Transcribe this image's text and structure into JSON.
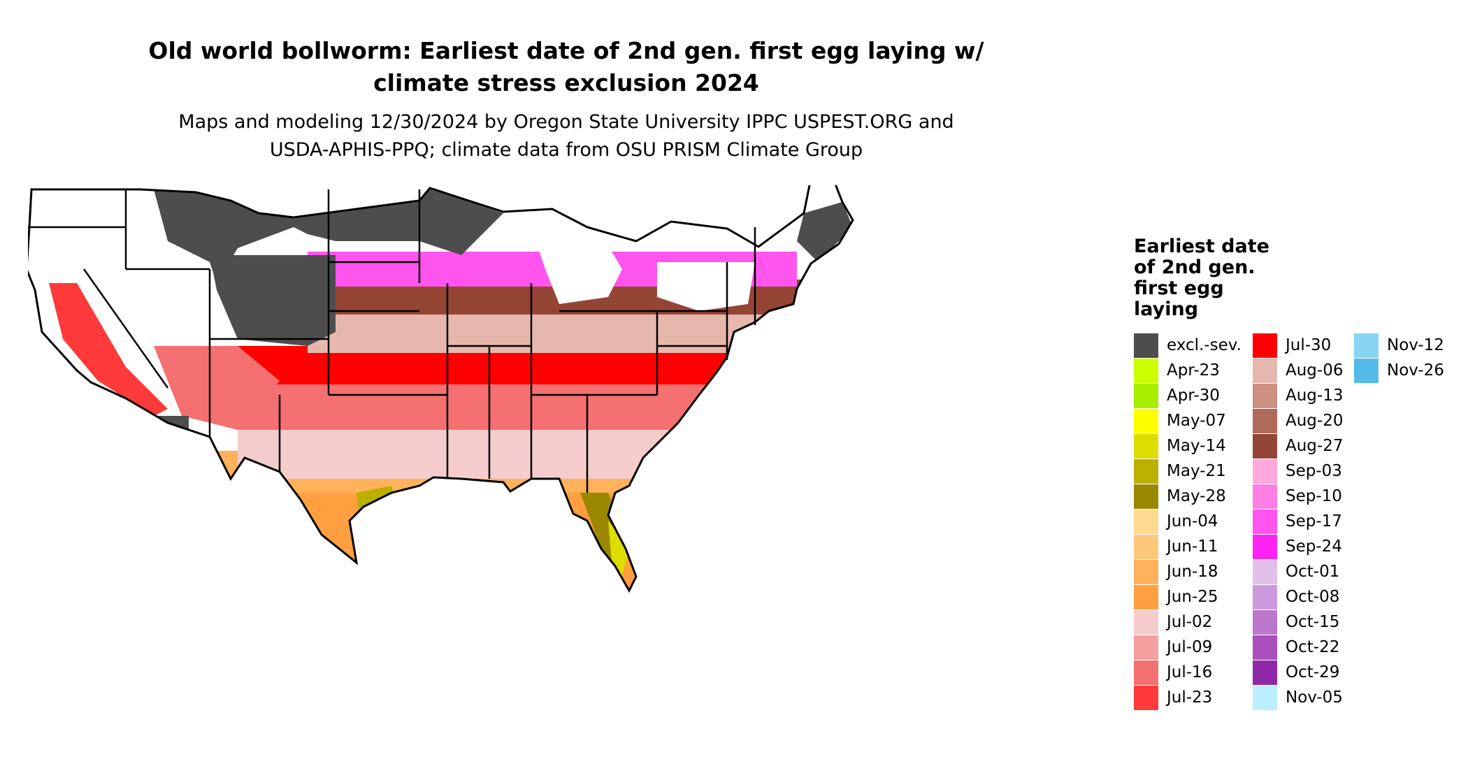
{
  "title": "Old world bollworm: Earliest date of 2nd gen. first egg laying w/\nclimate stress exclusion 2024",
  "title_line1": "Old world bollworm: Earliest date of 2nd gen. first egg laying w/",
  "title_line2": "climate stress exclusion 2024",
  "subtitle_line1": "Maps and modeling 12/30/2024 by Oregon State University IPPC USPEST.ORG and",
  "subtitle_line2": "USDA-APHIS-PPQ; climate data from OSU PRISM Climate Group",
  "legend": {
    "title": "Earliest date of 2nd gen. first egg laying",
    "items": [
      {
        "label": "excl.-sev.",
        "color": "#4d4d4d"
      },
      {
        "label": "Apr-23",
        "color": "#ccff00"
      },
      {
        "label": "Apr-30",
        "color": "#a8ee00"
      },
      {
        "label": "May-07",
        "color": "#ffff00"
      },
      {
        "label": "May-14",
        "color": "#dddd00"
      },
      {
        "label": "May-21",
        "color": "#bbb000"
      },
      {
        "label": "May-28",
        "color": "#9a8800"
      },
      {
        "label": "Jun-04",
        "color": "#ffd98f"
      },
      {
        "label": "Jun-11",
        "color": "#ffc77a"
      },
      {
        "label": "Jun-18",
        "color": "#ffb25a"
      },
      {
        "label": "Jun-25",
        "color": "#ff9f40"
      },
      {
        "label": "Jul-02",
        "color": "#f5cccc"
      },
      {
        "label": "Jul-09",
        "color": "#f5a0a0"
      },
      {
        "label": "Jul-16",
        "color": "#f57070"
      },
      {
        "label": "Jul-23",
        "color": "#ff3a3a"
      },
      {
        "label": "Jul-30",
        "color": "#ff0000"
      },
      {
        "label": "Aug-06",
        "color": "#e6b8ad"
      },
      {
        "label": "Aug-13",
        "color": "#cc8f80"
      },
      {
        "label": "Aug-20",
        "color": "#b06a5a"
      },
      {
        "label": "Aug-27",
        "color": "#954534"
      },
      {
        "label": "Sep-03",
        "color": "#ffa8dc"
      },
      {
        "label": "Sep-10",
        "color": "#ff7ee3"
      },
      {
        "label": "Sep-17",
        "color": "#ff55ee"
      },
      {
        "label": "Sep-24",
        "color": "#ff22f5"
      },
      {
        "label": "Oct-01",
        "color": "#e3c0ea"
      },
      {
        "label": "Oct-08",
        "color": "#cc99dd"
      },
      {
        "label": "Oct-15",
        "color": "#bb77cc"
      },
      {
        "label": "Oct-22",
        "color": "#aa4fbd"
      },
      {
        "label": "Oct-29",
        "color": "#8f28a8"
      },
      {
        "label": "Nov-05",
        "color": "#bbeeff"
      },
      {
        "label": "Nov-12",
        "color": "#88d4f2"
      },
      {
        "label": "Nov-26",
        "color": "#55bbe6"
      }
    ]
  }
}
